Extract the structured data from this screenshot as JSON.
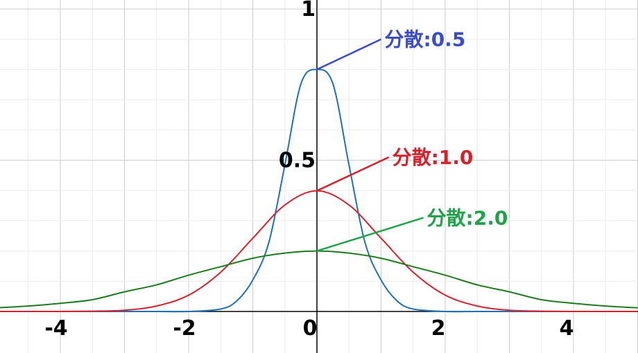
{
  "chart_data": {
    "type": "line",
    "title": "",
    "xlabel": "",
    "ylabel": "",
    "xlim": [
      -5,
      5
    ],
    "ylim": [
      0,
      1
    ],
    "grid": true,
    "x_ticks": [
      {
        "value": -4,
        "label": "-4"
      },
      {
        "value": -2,
        "label": "-2"
      },
      {
        "value": 0,
        "label": "0"
      },
      {
        "value": 2,
        "label": "2"
      },
      {
        "value": 4,
        "label": "4"
      }
    ],
    "y_ticks": [
      {
        "value": 0.5,
        "label": "0.5"
      },
      {
        "value": 1,
        "label": "1"
      }
    ],
    "series": [
      {
        "variance": 0.5,
        "color": "#1f6fb3",
        "x": [
          -5,
          -4.5,
          -4,
          -3.5,
          -3,
          -2.5,
          -2,
          -1.5,
          -1.25,
          -1,
          -0.75,
          -0.5,
          -0.25,
          0,
          0.25,
          0.5,
          0.75,
          1,
          1.25,
          1.5,
          2,
          2.5,
          3,
          3.5,
          4,
          4.5,
          5
        ],
        "y": [
          0,
          0,
          0,
          0,
          0,
          0,
          0,
          0.008,
          0.035,
          0.104,
          0.228,
          0.484,
          0.752,
          0.8,
          0.752,
          0.484,
          0.228,
          0.104,
          0.035,
          0.008,
          0,
          0,
          0,
          0,
          0,
          0,
          0
        ]
      },
      {
        "variance": 1.0,
        "color": "#d6202b",
        "x": [
          -5,
          -4.5,
          -4,
          -3.5,
          -3,
          -2.5,
          -2,
          -1.5,
          -1,
          -0.5,
          0,
          0.5,
          1,
          1.5,
          2,
          2.5,
          3,
          3.5,
          4,
          4.5,
          5
        ],
        "y": [
          0,
          0,
          0,
          0.001,
          0.004,
          0.018,
          0.054,
          0.13,
          0.242,
          0.352,
          0.399,
          0.352,
          0.242,
          0.13,
          0.054,
          0.018,
          0.004,
          0.001,
          0,
          0,
          0
        ]
      },
      {
        "variance": 2.0,
        "color": "#1e7a1e",
        "x": [
          -5,
          -4.5,
          -4,
          -3.5,
          -3,
          -2.5,
          -2,
          -1.5,
          -1,
          -0.5,
          0,
          0.5,
          1,
          1.5,
          2,
          2.5,
          3,
          3.5,
          4,
          4.5,
          5
        ],
        "y": [
          0.012,
          0.018,
          0.027,
          0.039,
          0.065,
          0.088,
          0.12,
          0.148,
          0.176,
          0.193,
          0.2,
          0.193,
          0.176,
          0.148,
          0.12,
          0.088,
          0.065,
          0.039,
          0.027,
          0.018,
          0.012
        ]
      }
    ],
    "annotations": [
      {
        "text": "分散:0.5",
        "color": "#3b4cc4",
        "point": [
          0,
          0.8
        ],
        "anchor": [
          1.0,
          0.9
        ]
      },
      {
        "text": "分散:1.0",
        "color": "#d6202b",
        "point": [
          0,
          0.399
        ],
        "anchor": [
          1.12,
          0.51
        ]
      },
      {
        "text": "分散:2.0",
        "color": "#21a24a",
        "point": [
          0,
          0.2
        ],
        "anchor": [
          1.66,
          0.31
        ]
      }
    ]
  }
}
